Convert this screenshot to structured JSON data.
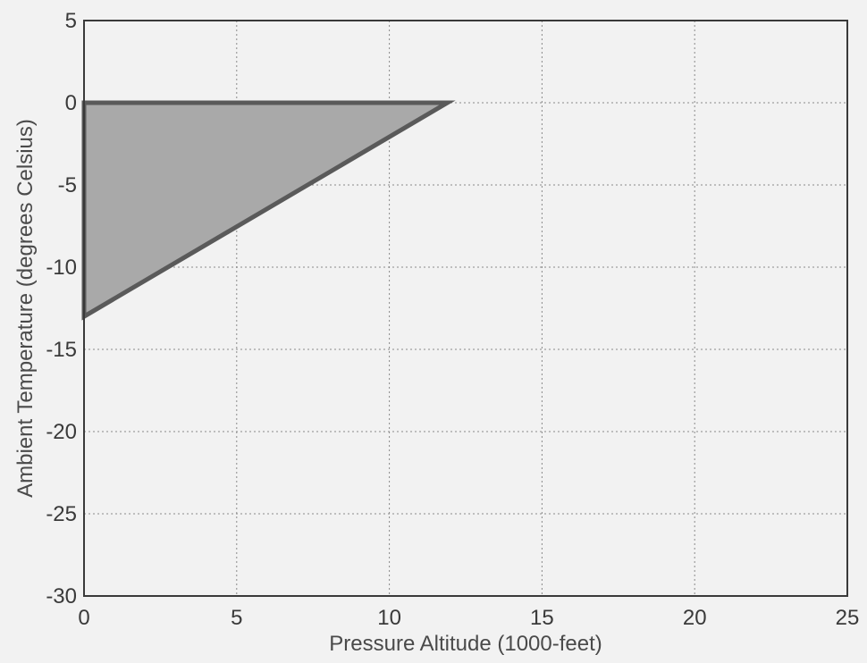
{
  "chart_data": {
    "type": "area",
    "title": "",
    "xlabel": "Pressure Altitude (1000-feet)",
    "ylabel": "Ambient Temperature (degrees Celsius)",
    "xlim": [
      0,
      25
    ],
    "ylim": [
      -30,
      5
    ],
    "xticks": [
      0,
      5,
      10,
      15,
      20,
      25
    ],
    "yticks": [
      5,
      0,
      -5,
      -10,
      -15,
      -20,
      -25,
      -30
    ],
    "grid": true,
    "region_color": "#a9a9a9",
    "edge_color": "#5a5a5a",
    "series": [
      {
        "x": [
          0,
          11.9,
          0,
          0
        ],
        "y": [
          0,
          0,
          -13,
          0
        ]
      }
    ]
  }
}
